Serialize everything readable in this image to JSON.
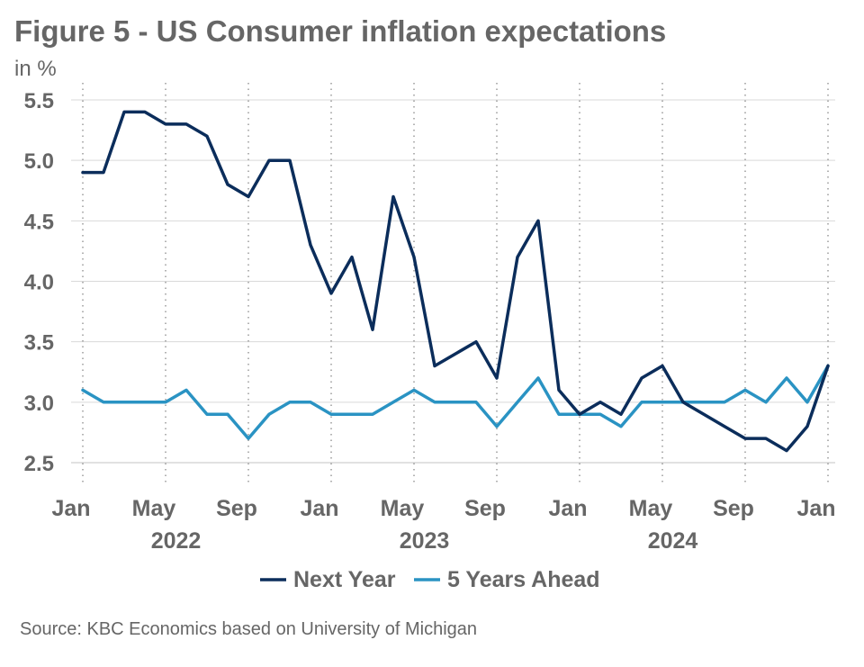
{
  "chart_data": {
    "type": "line",
    "title": "Figure 5 - US Consumer inflation expectations",
    "unit_label": "in %",
    "source": "Source: KBC Economics based on University of Michigan",
    "ylim": [
      2.5,
      5.5
    ],
    "y_ticks": [
      "5.5",
      "5.0",
      "4.5",
      "4.0",
      "3.5",
      "3.0",
      "2.5"
    ],
    "x_ticks": [
      "Jan",
      "May",
      "Sep",
      "Jan",
      "May",
      "Sep",
      "Jan",
      "May",
      "Sep",
      "Jan"
    ],
    "years": [
      "2022",
      "2023",
      "2024"
    ],
    "legend_position": "bottom",
    "grid": true,
    "x": [
      "2022-01",
      "2022-02",
      "2022-03",
      "2022-04",
      "2022-05",
      "2022-06",
      "2022-07",
      "2022-08",
      "2022-09",
      "2022-10",
      "2022-11",
      "2022-12",
      "2023-01",
      "2023-02",
      "2023-03",
      "2023-04",
      "2023-05",
      "2023-06",
      "2023-07",
      "2023-08",
      "2023-09",
      "2023-10",
      "2023-11",
      "2023-12",
      "2024-01",
      "2024-02",
      "2024-03",
      "2024-04",
      "2024-05",
      "2024-06",
      "2024-07",
      "2024-08",
      "2024-09",
      "2024-10",
      "2024-11",
      "2024-12",
      "2025-01"
    ],
    "series": [
      {
        "name": "Next Year",
        "color": "#0b2d5b",
        "values": [
          4.9,
          4.9,
          5.4,
          5.4,
          5.3,
          5.3,
          5.2,
          4.8,
          4.7,
          5.0,
          5.0,
          4.3,
          3.9,
          4.2,
          3.6,
          4.7,
          4.2,
          3.3,
          3.4,
          3.5,
          3.2,
          4.2,
          4.5,
          3.1,
          2.9,
          3.0,
          2.9,
          3.2,
          3.3,
          3.0,
          2.9,
          2.8,
          2.7,
          2.7,
          2.6,
          2.8,
          3.3
        ]
      },
      {
        "name": "5 Years Ahead",
        "color": "#2a93c3",
        "values": [
          3.1,
          3.0,
          3.0,
          3.0,
          3.0,
          3.1,
          2.9,
          2.9,
          2.7,
          2.9,
          3.0,
          3.0,
          2.9,
          2.9,
          2.9,
          3.0,
          3.1,
          3.0,
          3.0,
          3.0,
          2.8,
          3.0,
          3.2,
          2.9,
          2.9,
          2.9,
          2.8,
          3.0,
          3.0,
          3.0,
          3.0,
          3.0,
          3.1,
          3.0,
          3.2,
          3.0,
          3.3
        ]
      }
    ]
  }
}
